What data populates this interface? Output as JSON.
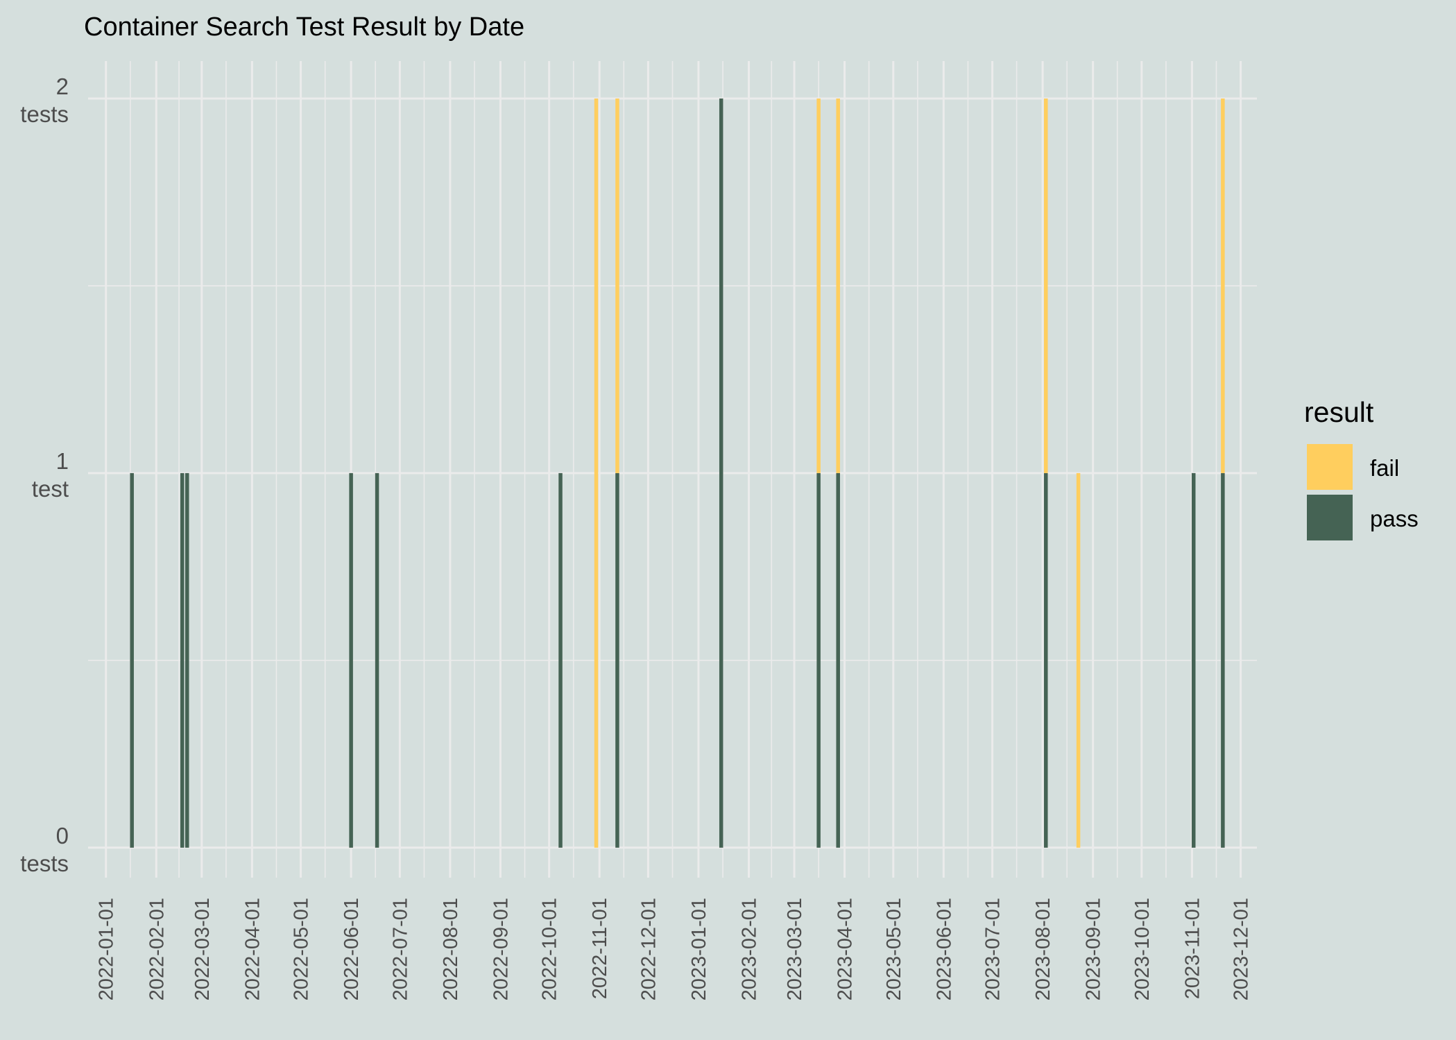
{
  "chart_data": {
    "type": "bar",
    "stacked": true,
    "title": "Container Search Test Result by Date",
    "xlabel": "",
    "ylabel": "",
    "x_axis_type": "date",
    "xlim": [
      "2021-12-21",
      "2023-12-11"
    ],
    "ylim": [
      -0.08,
      2.1
    ],
    "grid": true,
    "legend_position": "right",
    "y_ticks": [
      {
        "value": 0,
        "line1": "0",
        "line2": "tests"
      },
      {
        "value": 1,
        "line1": "1",
        "line2": "test"
      },
      {
        "value": 2,
        "line1": "2",
        "line2": "tests"
      }
    ],
    "x_ticks": [
      "2022-01-01",
      "2022-02-01",
      "2022-03-01",
      "2022-04-01",
      "2022-05-01",
      "2022-06-01",
      "2022-07-01",
      "2022-08-01",
      "2022-09-01",
      "2022-10-01",
      "2022-11-01",
      "2022-12-01",
      "2023-01-01",
      "2023-02-01",
      "2023-03-01",
      "2023-04-01",
      "2023-05-01",
      "2023-06-01",
      "2023-07-01",
      "2023-08-01",
      "2023-09-01",
      "2023-10-01",
      "2023-11-01",
      "2023-12-01"
    ],
    "legend": {
      "title": "result",
      "entries": [
        {
          "name": "fail",
          "color": "#ffce5e"
        },
        {
          "name": "pass",
          "color": "#456354"
        }
      ]
    },
    "categories": [
      "2022-01-17",
      "2022-02-17",
      "2022-02-20",
      "2022-06-01",
      "2022-06-17",
      "2022-10-08",
      "2022-10-30",
      "2022-11-12",
      "2023-01-15",
      "2023-03-16",
      "2023-03-28",
      "2023-08-03",
      "2023-08-23",
      "2023-11-02",
      "2023-11-20"
    ],
    "series": [
      {
        "name": "pass",
        "color": "#456354",
        "values": [
          1,
          1,
          1,
          1,
          1,
          1,
          0,
          1,
          2,
          1,
          1,
          1,
          0,
          1,
          1
        ]
      },
      {
        "name": "fail",
        "color": "#ffce5e",
        "values": [
          0,
          0,
          0,
          0,
          0,
          0,
          2,
          1,
          0,
          1,
          1,
          1,
          1,
          0,
          1
        ]
      }
    ]
  }
}
